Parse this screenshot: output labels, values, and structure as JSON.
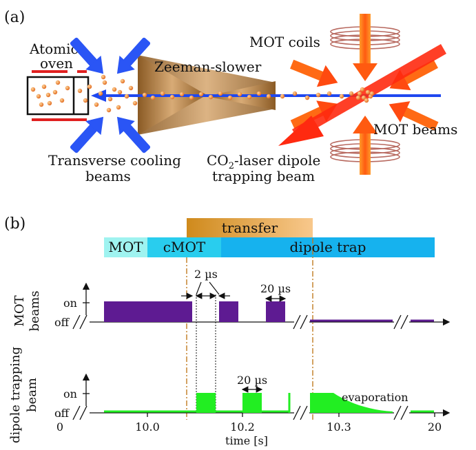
{
  "panel_a": {
    "label": "(a)",
    "oven_label_1": "Atomic",
    "oven_label_2": "oven",
    "zeeman_label": "Zeeman-slower",
    "mot_coils_label": "MOT coils",
    "mot_beams_label": "MOT beams",
    "transverse_label_1": "Transverse cooling",
    "transverse_label_2": "beams",
    "co2_label_1_pre": "CO",
    "co2_label_1_sub": "2",
    "co2_label_1_post": "-laser dipole",
    "co2_label_2": "trapping beam"
  },
  "panel_b": {
    "label": "(b)",
    "phases": {
      "transfer": "transfer",
      "mot": "MOT",
      "cmot": "cMOT",
      "dipole_trap": "dipole trap"
    },
    "colors": {
      "mot_phase": "#9ff3f0",
      "cmot_phase": "#29cdee",
      "dipole_phase": "#16b2ee",
      "transfer_from": "#cf8a1c",
      "transfer_to": "#f8c88c",
      "mot_beams": "#5e1b92",
      "dipole_beam": "#22ee22",
      "marker_line": "#c07a20"
    },
    "mot_beams": {
      "ylabel_1": "MOT",
      "ylabel_2": "beams",
      "on": "on",
      "off": "off",
      "annotation_2us": "2 µs",
      "annotation_20us": "20 µs"
    },
    "dipole_beam": {
      "ylabel_1": "dipole trapping",
      "ylabel_2": "beam",
      "on": "on",
      "off": "off",
      "annotation_20us": "20 µs",
      "evaporation": "evaporation"
    },
    "xaxis": {
      "ticks": [
        "0",
        "10.0",
        "10.2",
        "10.3",
        "20"
      ],
      "label": "time [s]"
    }
  }
}
